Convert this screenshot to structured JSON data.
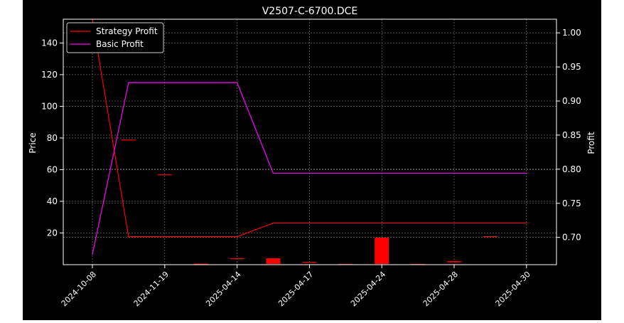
{
  "chart_data": {
    "type": "line",
    "title": "V2507-C-6700.DCE",
    "ylabel_left": "Price",
    "ylabel_right": "Profit",
    "categories": [
      "2024-10-08",
      "2024-11-19",
      "2025-04-14",
      "2025-04-17",
      "2025-04-24",
      "2025-04-28",
      "2025-04-30"
    ],
    "ylim_left": [
      0,
      155
    ],
    "ylim_right": [
      0.66,
      1.02
    ],
    "yticks_left": [
      20,
      40,
      60,
      80,
      100,
      120,
      140
    ],
    "yticks_right": [
      0.7,
      0.75,
      0.8,
      0.85,
      0.9,
      0.95,
      1.0
    ],
    "grid": true,
    "legend_position": "top-left",
    "colors": {
      "background": "#000000",
      "strategy": "#ff0000",
      "basic": "#ff00ff",
      "candle": "#ff0000",
      "grid": "#808080"
    },
    "series": [
      {
        "name": "Strategy Profit",
        "axis": "right",
        "x": [
          0,
          0.5,
          2,
          2.5,
          6
        ],
        "values": [
          1.02,
          0.701,
          0.701,
          0.721,
          0.721
        ]
      },
      {
        "name": "Basic Profit",
        "axis": "right",
        "x": [
          0,
          0.5,
          2,
          2.5,
          6
        ],
        "values": [
          0.675,
          0.927,
          0.927,
          0.794,
          0.794
        ]
      }
    ],
    "candles": [
      {
        "x": 0.5,
        "open": 79,
        "close": 79
      },
      {
        "x": 1,
        "open": 57,
        "close": 57
      },
      {
        "x": 1.5,
        "open": 0.6,
        "close": 0.6
      },
      {
        "x": 2,
        "open": 4,
        "close": 4
      },
      {
        "x": 2.5,
        "open": 4,
        "close": 0.5
      },
      {
        "x": 3,
        "open": 1.8,
        "close": 1.8
      },
      {
        "x": 3.5,
        "open": 0.4,
        "close": 0.4
      },
      {
        "x": 4,
        "open": 17,
        "close": 0.5
      },
      {
        "x": 4.5,
        "open": 0.4,
        "close": 0.4
      },
      {
        "x": 5,
        "open": 2.2,
        "close": 1.5
      },
      {
        "x": 5.5,
        "open": 18,
        "close": 18
      }
    ]
  }
}
